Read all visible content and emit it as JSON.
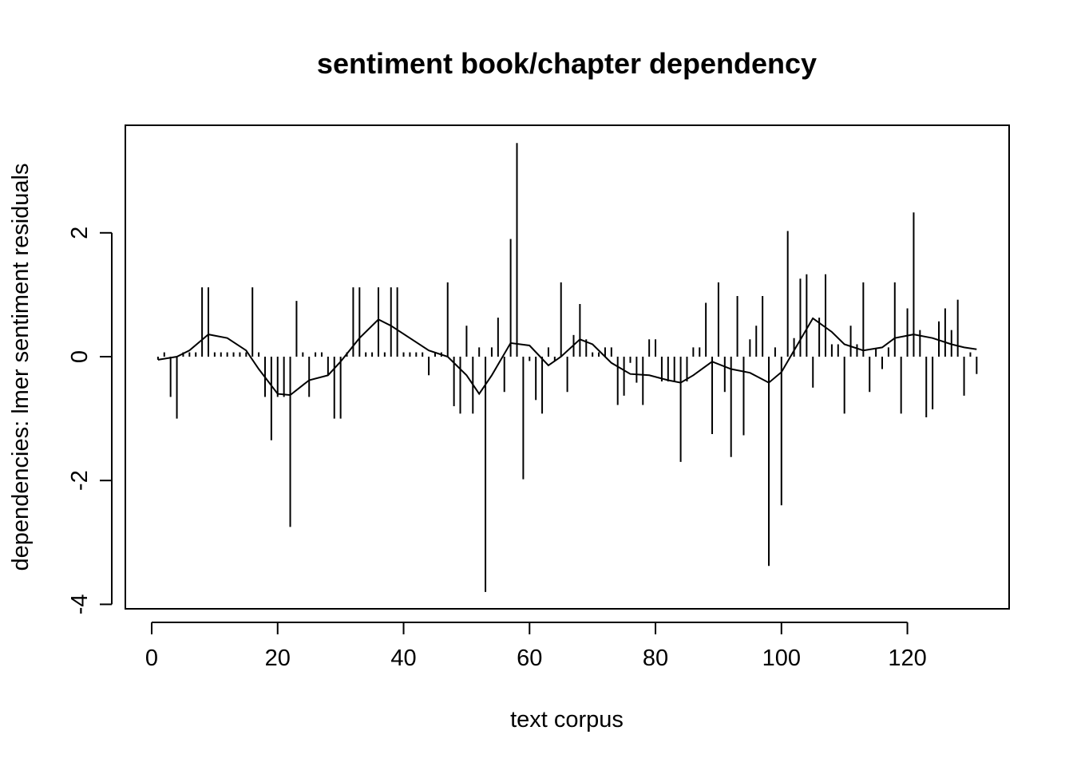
{
  "chart_data": {
    "type": "line",
    "title": "sentiment book/chapter dependency",
    "xlabel": "text corpus",
    "ylabel": "dependencies: lmer sentiment residuals",
    "xlim": [
      0,
      131
    ],
    "ylim": [
      -4,
      3.5
    ],
    "x_ticks": [
      0,
      20,
      40,
      60,
      80,
      100,
      120
    ],
    "y_ticks": [
      -4,
      -2,
      0,
      2
    ],
    "grid": false,
    "legend": "none",
    "colors": {
      "line": "#000000",
      "bars": "#000000",
      "background": "#ffffff"
    },
    "series": [
      {
        "type": "histogram-spikes",
        "x": [
          1,
          2,
          3,
          4,
          5,
          6,
          7,
          8,
          9,
          10,
          11,
          12,
          13,
          14,
          15,
          16,
          17,
          18,
          19,
          20,
          21,
          22,
          23,
          24,
          25,
          26,
          27,
          28,
          29,
          30,
          31,
          32,
          33,
          34,
          35,
          36,
          37,
          38,
          39,
          40,
          41,
          42,
          43,
          44,
          45,
          46,
          47,
          48,
          49,
          50,
          51,
          52,
          53,
          54,
          55,
          56,
          57,
          58,
          59,
          60,
          61,
          62,
          63,
          64,
          65,
          66,
          67,
          68,
          69,
          70,
          71,
          72,
          73,
          74,
          75,
          76,
          77,
          78,
          79,
          80,
          81,
          82,
          83,
          84,
          85,
          86,
          87,
          88,
          89,
          90,
          91,
          92,
          93,
          94,
          95,
          96,
          97,
          98,
          99,
          100,
          101,
          102,
          103,
          104,
          105,
          106,
          107,
          108,
          109,
          110,
          111,
          112,
          113,
          114,
          115,
          116,
          117,
          118,
          119,
          120,
          121,
          122,
          123,
          124,
          125,
          126,
          127,
          128,
          129,
          130,
          131
        ],
        "values": [
          -0.05,
          0.07,
          -0.65,
          -1.0,
          0.07,
          0.07,
          0.07,
          1.12,
          1.12,
          0.07,
          0.07,
          0.07,
          0.07,
          0.07,
          0.07,
          1.12,
          0.07,
          -0.65,
          -1.35,
          -0.65,
          -0.65,
          -2.75,
          0.9,
          0.07,
          -0.65,
          0.07,
          0.07,
          -0.3,
          -1.0,
          -1.0,
          0.07,
          1.12,
          1.12,
          0.07,
          0.07,
          1.12,
          0.07,
          1.12,
          1.12,
          0.07,
          0.07,
          0.07,
          0.07,
          -0.3,
          0.07,
          0.07,
          1.2,
          -0.8,
          -0.92,
          0.5,
          -0.92,
          0.15,
          -3.8,
          0.15,
          0.63,
          -0.57,
          1.9,
          3.45,
          -1.98,
          -0.07,
          -0.7,
          -0.92,
          0.15,
          -0.07,
          1.2,
          -0.57,
          0.35,
          0.85,
          0.28,
          0.07,
          0.07,
          0.15,
          0.15,
          -0.78,
          -0.63,
          -0.1,
          -0.42,
          -0.78,
          0.28,
          0.28,
          -0.4,
          -0.4,
          -0.4,
          -1.7,
          -0.4,
          0.15,
          0.15,
          0.87,
          -1.25,
          1.2,
          -0.57,
          -1.62,
          0.98,
          -1.27,
          0.28,
          0.5,
          0.98,
          -3.38,
          0.15,
          -2.4,
          2.03,
          0.3,
          1.26,
          1.33,
          -0.5,
          0.63,
          1.33,
          0.2,
          0.2,
          -0.92,
          0.5,
          0.2,
          1.2,
          -0.57,
          0.13,
          -0.2,
          0.15,
          1.2,
          -0.92,
          0.78,
          2.33,
          0.43,
          -0.98,
          -0.85,
          0.57,
          0.78,
          0.43,
          0.92,
          -0.63,
          0.07,
          -0.28
        ]
      },
      {
        "type": "smoothed-line",
        "x": [
          1,
          4,
          6,
          9,
          12,
          15,
          17,
          20,
          22,
          25,
          28,
          30,
          33,
          36,
          38,
          41,
          44,
          47,
          50,
          52,
          54,
          57,
          60,
          63,
          65,
          68,
          70,
          73,
          76,
          79,
          82,
          84,
          86,
          89,
          92,
          95,
          98,
          100,
          102,
          105,
          108,
          110,
          113,
          116,
          118,
          121,
          124,
          127,
          129,
          131
        ],
        "values": [
          -0.05,
          0.0,
          0.1,
          0.36,
          0.3,
          0.1,
          -0.2,
          -0.6,
          -0.62,
          -0.38,
          -0.3,
          -0.08,
          0.3,
          0.6,
          0.5,
          0.3,
          0.1,
          0.0,
          -0.3,
          -0.6,
          -0.3,
          0.22,
          0.18,
          -0.14,
          0.0,
          0.28,
          0.2,
          -0.1,
          -0.28,
          -0.3,
          -0.38,
          -0.42,
          -0.3,
          -0.08,
          -0.2,
          -0.26,
          -0.42,
          -0.25,
          0.1,
          0.62,
          0.4,
          0.2,
          0.1,
          0.15,
          0.3,
          0.36,
          0.3,
          0.2,
          0.15,
          0.12
        ]
      }
    ]
  }
}
